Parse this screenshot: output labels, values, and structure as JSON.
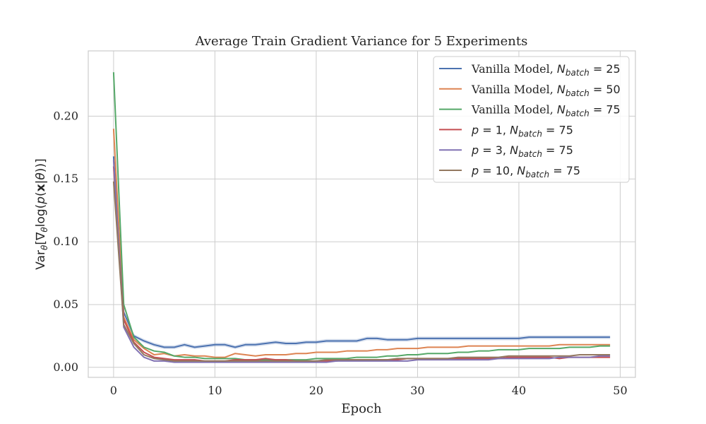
{
  "chart_data": {
    "type": "line",
    "title": "Average Train Gradient Variance for 5 Experiments",
    "xlabel": "Epoch",
    "ylabel": "Var_θ[∇_θ log(p(x|θ))]",
    "xlim": [
      -2.5,
      51.5
    ],
    "ylim": [
      -0.008,
      0.252
    ],
    "xticks": [
      0,
      10,
      20,
      30,
      40,
      50
    ],
    "yticks": [
      0.0,
      0.05,
      0.1,
      0.15,
      0.2
    ],
    "ytick_labels": [
      "0.00",
      "0.05",
      "0.10",
      "0.15",
      "0.20"
    ],
    "grid": true,
    "legend_position": "top-right",
    "series": [
      {
        "name": "Vanilla Model, N_batch = 25",
        "legend_prefix": "Vanilla Model, ",
        "legend_math": "N",
        "legend_sub": "batch",
        "legend_eq": " = 25",
        "color": "#4c72b0",
        "band": true,
        "values": [
          0.168,
          0.044,
          0.025,
          0.021,
          0.018,
          0.016,
          0.016,
          0.018,
          0.016,
          0.017,
          0.018,
          0.018,
          0.016,
          0.018,
          0.018,
          0.019,
          0.02,
          0.019,
          0.019,
          0.02,
          0.02,
          0.021,
          0.021,
          0.021,
          0.021,
          0.023,
          0.023,
          0.022,
          0.022,
          0.022,
          0.023,
          0.023,
          0.023,
          0.023,
          0.023,
          0.023,
          0.023,
          0.023,
          0.023,
          0.023,
          0.023,
          0.024,
          0.024,
          0.024,
          0.024,
          0.024,
          0.024,
          0.024,
          0.024,
          0.024
        ]
      },
      {
        "name": "Vanilla Model, N_batch = 50",
        "legend_prefix": "Vanilla Model, ",
        "legend_math": "N",
        "legend_sub": "batch",
        "legend_eq": " = 50",
        "color": "#dd8452",
        "band": false,
        "values": [
          0.19,
          0.04,
          0.022,
          0.015,
          0.01,
          0.011,
          0.009,
          0.01,
          0.009,
          0.009,
          0.008,
          0.008,
          0.011,
          0.01,
          0.009,
          0.01,
          0.01,
          0.01,
          0.011,
          0.011,
          0.012,
          0.012,
          0.012,
          0.013,
          0.013,
          0.013,
          0.014,
          0.014,
          0.015,
          0.015,
          0.015,
          0.016,
          0.016,
          0.016,
          0.016,
          0.017,
          0.017,
          0.017,
          0.017,
          0.017,
          0.017,
          0.017,
          0.017,
          0.017,
          0.018,
          0.018,
          0.018,
          0.018,
          0.018,
          0.018
        ]
      },
      {
        "name": "Vanilla Model, N_batch = 75",
        "legend_prefix": "Vanilla Model, ",
        "legend_math": "N",
        "legend_sub": "batch",
        "legend_eq": " = 75",
        "color": "#55a868",
        "band": false,
        "values": [
          0.235,
          0.05,
          0.024,
          0.016,
          0.013,
          0.012,
          0.009,
          0.008,
          0.008,
          0.007,
          0.007,
          0.007,
          0.007,
          0.006,
          0.006,
          0.006,
          0.006,
          0.006,
          0.006,
          0.006,
          0.007,
          0.007,
          0.007,
          0.007,
          0.008,
          0.008,
          0.008,
          0.009,
          0.009,
          0.01,
          0.01,
          0.011,
          0.011,
          0.011,
          0.012,
          0.012,
          0.013,
          0.013,
          0.014,
          0.014,
          0.014,
          0.015,
          0.015,
          0.015,
          0.015,
          0.016,
          0.016,
          0.016,
          0.017,
          0.017
        ]
      },
      {
        "name": "p = 1, N_batch = 75",
        "legend_p": "1",
        "legend_math": "N",
        "legend_sub": "batch",
        "legend_eq": " = 75",
        "color": "#c44e52",
        "band": false,
        "values": [
          0.16,
          0.038,
          0.02,
          0.012,
          0.008,
          0.007,
          0.006,
          0.006,
          0.006,
          0.005,
          0.005,
          0.005,
          0.006,
          0.006,
          0.006,
          0.007,
          0.006,
          0.006,
          0.005,
          0.005,
          0.005,
          0.005,
          0.005,
          0.006,
          0.006,
          0.006,
          0.006,
          0.006,
          0.006,
          0.007,
          0.007,
          0.007,
          0.007,
          0.007,
          0.007,
          0.007,
          0.007,
          0.007,
          0.007,
          0.008,
          0.008,
          0.008,
          0.008,
          0.008,
          0.007,
          0.008,
          0.008,
          0.008,
          0.008,
          0.008
        ]
      },
      {
        "name": "p = 3, N_batch = 75",
        "legend_p": "3",
        "legend_math": "N",
        "legend_sub": "batch",
        "legend_eq": " = 75",
        "color": "#8172b3",
        "band": false,
        "values": [
          0.165,
          0.032,
          0.016,
          0.008,
          0.005,
          0.005,
          0.004,
          0.004,
          0.004,
          0.004,
          0.004,
          0.004,
          0.004,
          0.004,
          0.004,
          0.004,
          0.004,
          0.004,
          0.004,
          0.004,
          0.004,
          0.004,
          0.005,
          0.005,
          0.005,
          0.005,
          0.005,
          0.005,
          0.005,
          0.005,
          0.006,
          0.006,
          0.006,
          0.006,
          0.006,
          0.006,
          0.006,
          0.006,
          0.007,
          0.007,
          0.007,
          0.007,
          0.007,
          0.007,
          0.008,
          0.008,
          0.008,
          0.008,
          0.009,
          0.009
        ]
      },
      {
        "name": "p = 10, N_batch = 75",
        "legend_p": "10",
        "legend_math": "N",
        "legend_sub": "batch",
        "legend_eq": " = 75",
        "color": "#937860",
        "band": false,
        "values": [
          0.148,
          0.034,
          0.019,
          0.01,
          0.007,
          0.006,
          0.005,
          0.005,
          0.005,
          0.005,
          0.005,
          0.005,
          0.005,
          0.005,
          0.005,
          0.005,
          0.005,
          0.005,
          0.005,
          0.005,
          0.005,
          0.006,
          0.006,
          0.006,
          0.006,
          0.006,
          0.006,
          0.006,
          0.007,
          0.007,
          0.007,
          0.007,
          0.007,
          0.007,
          0.008,
          0.008,
          0.008,
          0.008,
          0.008,
          0.009,
          0.009,
          0.009,
          0.009,
          0.009,
          0.009,
          0.009,
          0.01,
          0.01,
          0.01,
          0.01
        ]
      }
    ]
  }
}
